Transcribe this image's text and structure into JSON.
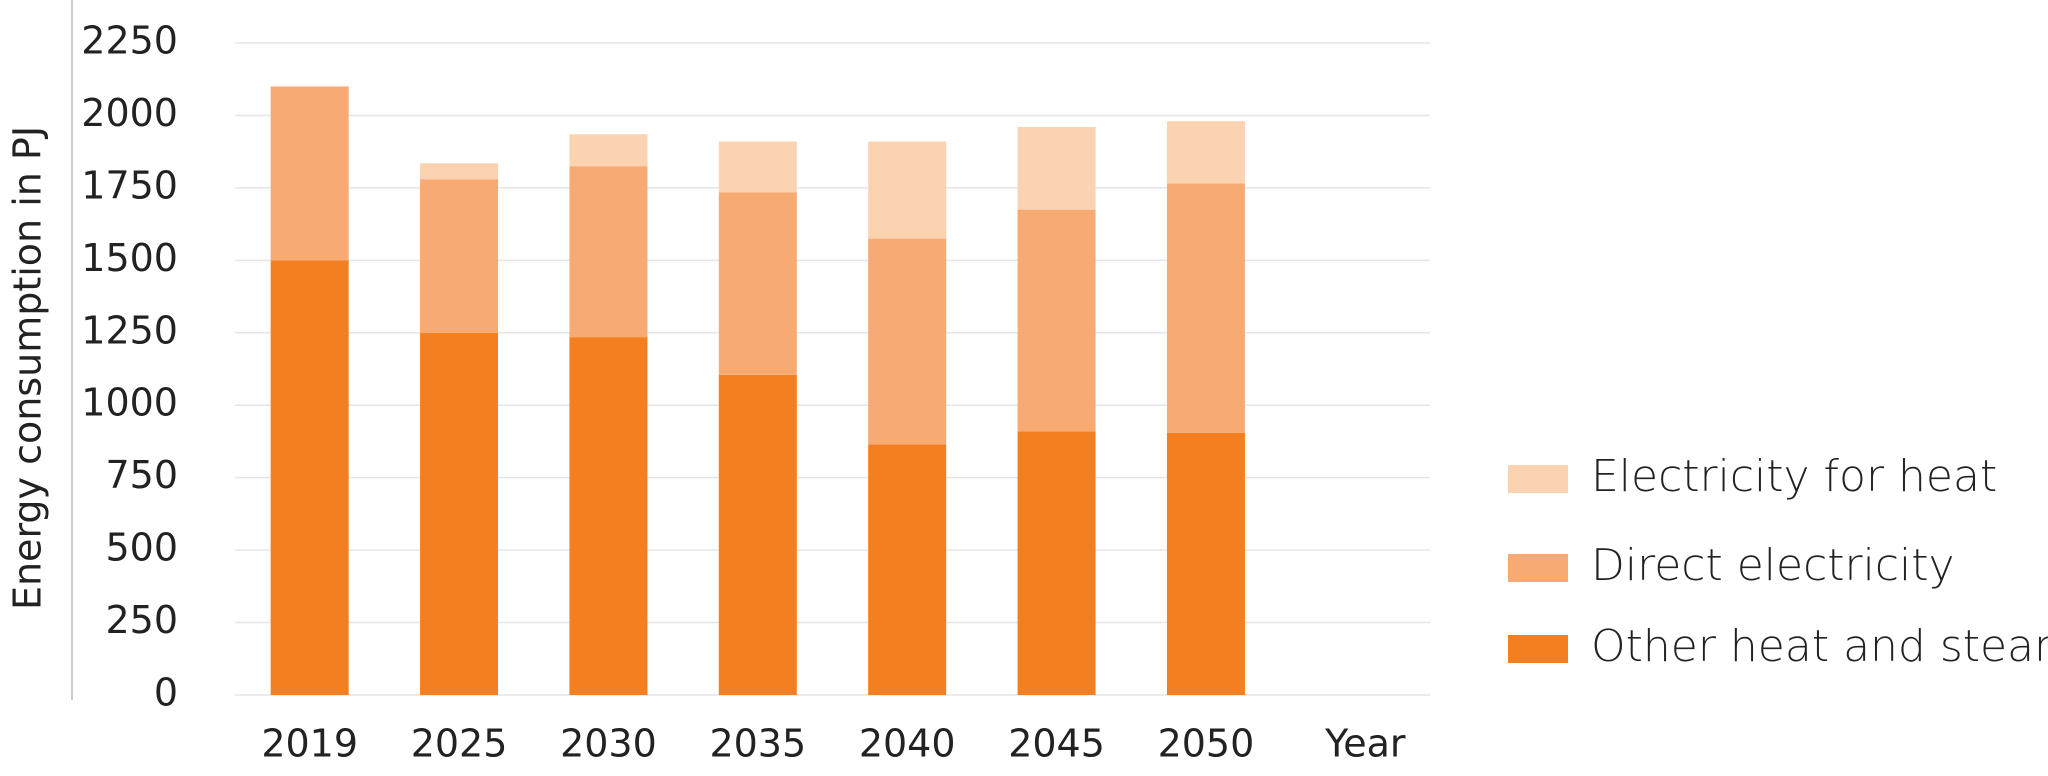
{
  "chart_data": {
    "type": "stacked-bar",
    "y_label": "Energy consumption in PJ",
    "x_label": "Year",
    "categories": [
      "2019",
      "2025",
      "2030",
      "2035",
      "2040",
      "2045",
      "2050"
    ],
    "series": [
      {
        "name": "Other heat and steam",
        "color": "#f47f20",
        "values": [
          1500,
          1250,
          1235,
          1105,
          865,
          910,
          905
        ]
      },
      {
        "name": "Direct electricity",
        "color": "#f7ab73",
        "values": [
          600,
          530,
          590,
          630,
          710,
          765,
          860
        ]
      },
      {
        "name": "Electricity for heat",
        "color": "#fbd3b0",
        "values": [
          0,
          55,
          110,
          175,
          335,
          285,
          215
        ]
      }
    ],
    "ylim": [
      0,
      2250
    ],
    "yticks": [
      0,
      250,
      500,
      750,
      1000,
      1250,
      1500,
      1750,
      2000,
      2250
    ],
    "grid": true
  }
}
